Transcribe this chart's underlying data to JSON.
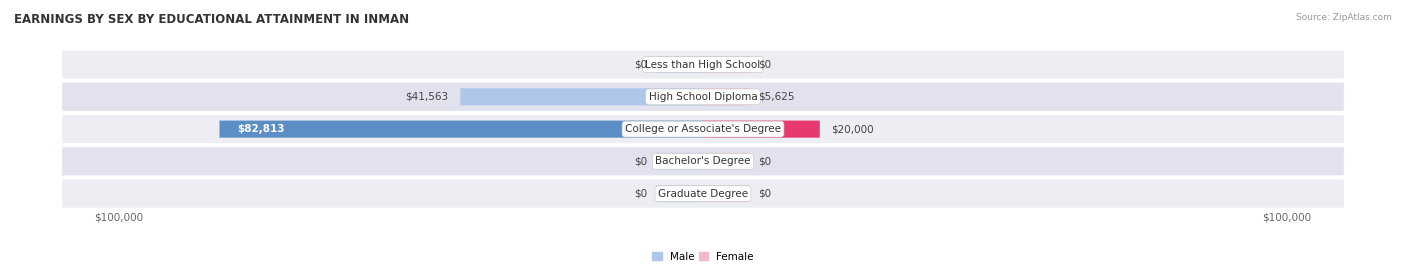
{
  "title": "EARNINGS BY SEX BY EDUCATIONAL ATTAINMENT IN INMAN",
  "source": "Source: ZipAtlas.com",
  "categories": [
    "Less than High School",
    "High School Diploma",
    "College or Associate's Degree",
    "Bachelor's Degree",
    "Graduate Degree"
  ],
  "male_values": [
    0,
    41563,
    82813,
    0,
    0
  ],
  "female_values": [
    0,
    5625,
    20000,
    0,
    0
  ],
  "male_labels": [
    "$0",
    "$41,563",
    "$82,813",
    "$0",
    "$0"
  ],
  "female_labels": [
    "$0",
    "$5,625",
    "$20,000",
    "$0",
    "$0"
  ],
  "male_color_normal": "#aec6e8",
  "male_color_highlight": "#5b8ec4",
  "female_color_normal": "#f4b8cb",
  "female_color_highlight": "#e83870",
  "row_bg_color_even": "#ededf4",
  "row_bg_color_odd": "#e2e2ee",
  "max_value": 100000,
  "x_axis_labels": [
    "$100,000",
    "$100,000"
  ],
  "legend_male": "Male",
  "legend_female": "Female",
  "title_fontsize": 8.5,
  "label_fontsize": 7.5,
  "category_fontsize": 7.5,
  "axis_fontsize": 7.5,
  "min_bar_width": 8000,
  "label_inside_threshold": 60000
}
